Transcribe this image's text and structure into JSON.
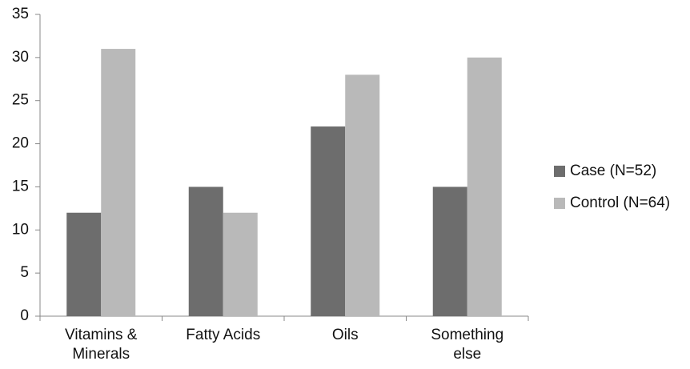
{
  "chart_data": {
    "type": "bar",
    "categories": [
      "Vitamins & Minerals",
      "Fatty Acids",
      "Oils",
      "Something else"
    ],
    "series": [
      {
        "name": "Case (N=52)",
        "color": "#6d6d6d",
        "values": [
          12,
          15,
          22,
          15
        ]
      },
      {
        "name": "Control (N=64)",
        "color": "#b9b9b9",
        "values": [
          31,
          12,
          28,
          30
        ]
      }
    ],
    "ylim": [
      0,
      35
    ],
    "yticks": [
      0,
      5,
      10,
      15,
      20,
      25,
      30,
      35
    ],
    "grid": false,
    "legend": "right"
  }
}
